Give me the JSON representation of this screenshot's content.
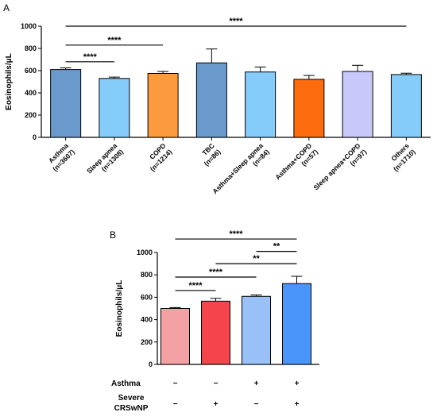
{
  "chart_data": [
    {
      "type": "bar",
      "panel": "A",
      "title": "",
      "xlabel": "",
      "ylabel": "Eosinophils/μL",
      "ylim": [
        0,
        1000
      ],
      "yticks": [
        0,
        200,
        400,
        600,
        800,
        1000
      ],
      "categories": [
        {
          "name": "Asthma",
          "n": "(n=3607)"
        },
        {
          "name": "Sleep apnea",
          "n": "(n=1308)"
        },
        {
          "name": "COPD",
          "n": "(n=1214)"
        },
        {
          "name": "TBC",
          "n": "(n=86)"
        },
        {
          "name": "Asthma+Sleep apnea",
          "n": "(n=84)"
        },
        {
          "name": "Asthma+COPD",
          "n": "(n=57)"
        },
        {
          "name": "Sleep apnea+COPD",
          "n": "(n=97)"
        },
        {
          "name": "Others",
          "n": "(n=1710)"
        }
      ],
      "values": [
        610,
        530,
        575,
        670,
        588,
        522,
        593,
        565
      ],
      "errors": [
        15,
        12,
        18,
        125,
        45,
        35,
        55,
        12
      ],
      "colors": [
        "#6a9acb",
        "#86ccfa",
        "#fb9b3d",
        "#6a9acb",
        "#86ccfa",
        "#fd6b0f",
        "#c9c8fb",
        "#86ccfa"
      ],
      "significance": [
        {
          "from": 0,
          "to": 7,
          "label": "****",
          "y": 1000
        },
        {
          "from": 0,
          "to": 2,
          "label": "****",
          "y": 830
        },
        {
          "from": 0,
          "to": 1,
          "label": "****",
          "y": 680
        }
      ],
      "grid": false,
      "legend": "none"
    },
    {
      "type": "bar",
      "panel": "B",
      "title": "",
      "xlabel": "",
      "ylabel": "Eosinophils/μL",
      "ylim": [
        0,
        1000
      ],
      "yticks": [
        0,
        200,
        400,
        600,
        800,
        1000
      ],
      "values": [
        500,
        565,
        608,
        722
      ],
      "errors": [
        8,
        25,
        12,
        65
      ],
      "colors": [
        "#f4a1a3",
        "#f4444c",
        "#9ac1f7",
        "#4a95f8"
      ],
      "factors": [
        {
          "name": "Asthma",
          "levels": [
            "−",
            "−",
            "+",
            "+"
          ]
        },
        {
          "name": "Severe CRSwNP",
          "lines": [
            "Severe",
            "CRSwNP"
          ],
          "levels": [
            "−",
            "+",
            "−",
            "+"
          ]
        }
      ],
      "significance": [
        {
          "from": 0,
          "to": 3,
          "label": "****",
          "y": 1120
        },
        {
          "from": 2,
          "to": 3,
          "label": "**",
          "y": 1010
        },
        {
          "from": 1,
          "to": 3,
          "label": "**",
          "y": 900
        },
        {
          "from": 0,
          "to": 2,
          "label": "****",
          "y": 780
        },
        {
          "from": 0,
          "to": 1,
          "label": "****",
          "y": 660
        }
      ],
      "grid": false,
      "legend": "none"
    }
  ]
}
